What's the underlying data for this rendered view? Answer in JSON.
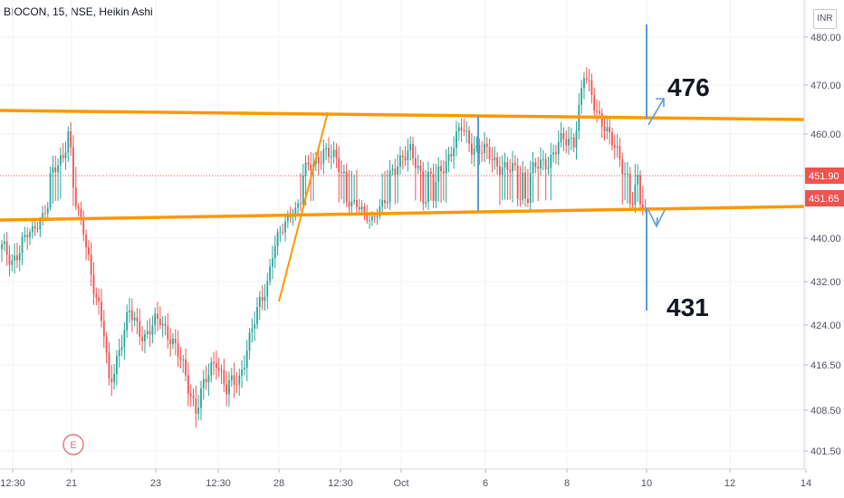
{
  "header": {
    "title": "BIOCON, 15, NSE, Heikin Ashi",
    "currency": "INR"
  },
  "colors": {
    "up": "#26a69a",
    "down": "#ef5350",
    "trend": "#ff9800",
    "projection": "#5b9bd5",
    "grid": "#f0f3fa",
    "price_tag": "#ef5350",
    "event_marker": "#e57373"
  },
  "chart_data": {
    "type": "candlestick",
    "x_ticks": [
      "12:30",
      "21",
      "23",
      "12:30",
      "28",
      "12:30",
      "Oct",
      "6",
      "8",
      "10",
      "12",
      "14"
    ],
    "y_ticks": [
      "480.00",
      "470.00",
      "460.00",
      "451.90",
      "451.65",
      "440.00",
      "432.00",
      "424.00",
      "416.50",
      "408.50",
      "401.50"
    ],
    "last_price": "451.90",
    "price_label_2": "451.65",
    "annotations": {
      "target_up": "476",
      "target_down": "431",
      "event_marker": "E"
    },
    "shape_points": [
      [
        0,
        438
      ],
      [
        4,
        436
      ],
      [
        12,
        442
      ],
      [
        20,
        452
      ],
      [
        24,
        456
      ],
      [
        26,
        461
      ],
      [
        28,
        452
      ],
      [
        35,
        434
      ],
      [
        40,
        422
      ],
      [
        42,
        413
      ],
      [
        45,
        418
      ],
      [
        50,
        426
      ],
      [
        56,
        422
      ],
      [
        62,
        425
      ],
      [
        66,
        422
      ],
      [
        70,
        417
      ],
      [
        76,
        409
      ],
      [
        84,
        418
      ],
      [
        88,
        412
      ],
      [
        93,
        414
      ],
      [
        96,
        420
      ],
      [
        100,
        426
      ],
      [
        104,
        432
      ],
      [
        106,
        438
      ],
      [
        110,
        442
      ],
      [
        112,
        446
      ],
      [
        118,
        452
      ],
      [
        122,
        454
      ],
      [
        126,
        457
      ],
      [
        130,
        455
      ],
      [
        136,
        451
      ],
      [
        142,
        447
      ],
      [
        145,
        446
      ],
      [
        150,
        450
      ],
      [
        155,
        455
      ],
      [
        160,
        456
      ],
      [
        165,
        452
      ],
      [
        170,
        451
      ],
      [
        180,
        461
      ],
      [
        184,
        458
      ],
      [
        190,
        456
      ],
      [
        198,
        453
      ],
      [
        206,
        452
      ],
      [
        214,
        455
      ],
      [
        218,
        458
      ],
      [
        224,
        459
      ],
      [
        228,
        472
      ],
      [
        232,
        466
      ],
      [
        236,
        462
      ],
      [
        238,
        459
      ],
      [
        242,
        455
      ],
      [
        246,
        451
      ],
      [
        250,
        450
      ],
      [
        252,
        448
      ]
    ]
  }
}
